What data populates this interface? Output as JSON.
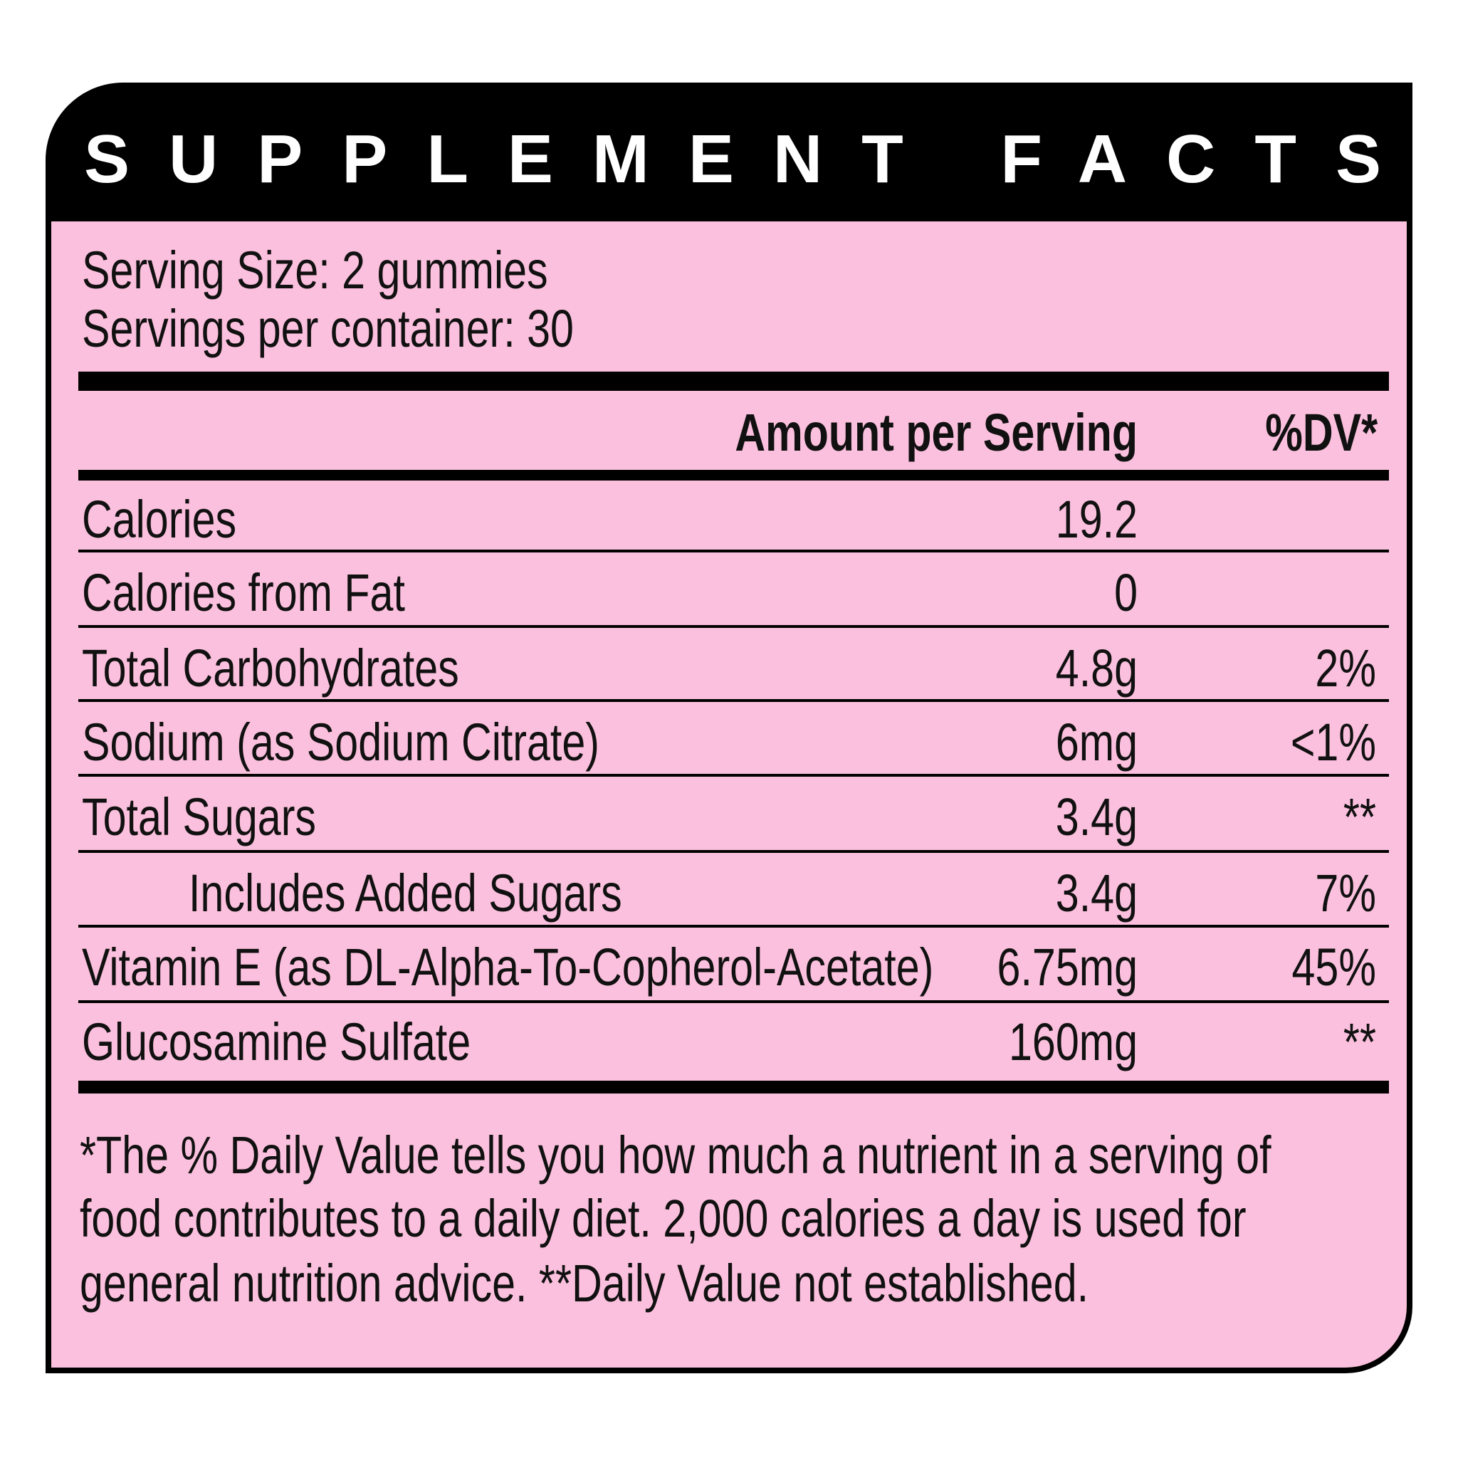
{
  "header": {
    "title": "SUPPLEMENT FACTS"
  },
  "serving": {
    "size": "Serving Size: 2 gummies",
    "per_container": "Servings per container: 30"
  },
  "table": {
    "columns": {
      "amount": "Amount per Serving",
      "dv": "%DV*"
    },
    "rows": [
      {
        "label": "Calories",
        "amount": "19.2"
      },
      {
        "label": "Calories from Fat",
        "amount": "0"
      },
      {
        "label": "Total Carbohydrates",
        "amount": "4.8g",
        "dv": "2%"
      },
      {
        "label": "Sodium (as Sodium Citrate)",
        "amount": "6mg",
        "dv": "<1%"
      },
      {
        "label": "Total Sugars",
        "amount": "3.4g",
        "dv": "**"
      },
      {
        "label": "Includes Added Sugars",
        "amount": "3.4g",
        "dv": "7%"
      },
      {
        "label": "Vitamin E (as DL-Alpha-To-Copherol-Acetate)",
        "amount": "6.75mg",
        "dv": "45%"
      },
      {
        "label": "Glucosamine Sulfate",
        "amount": "160mg",
        "dv": "**"
      }
    ]
  },
  "footnote": {
    "lines": [
      "*The % Daily Value tells you how much a nutrient in a serving of",
      "food contributes to a daily diet. 2,000 calories a day is used for",
      "general nutrition advice. **Daily Value not established."
    ]
  }
}
